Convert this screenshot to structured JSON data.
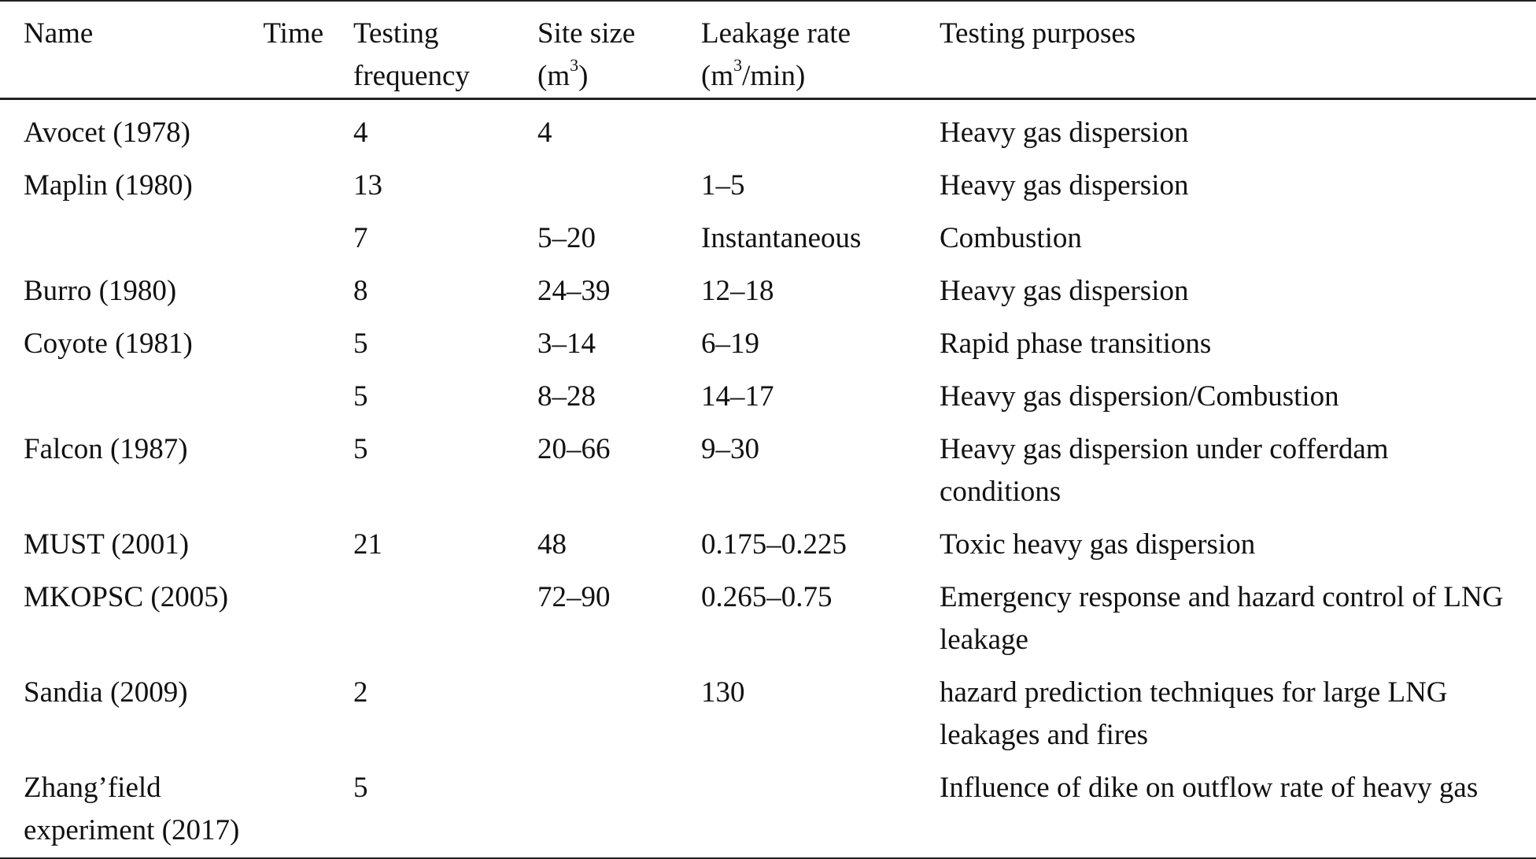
{
  "table": {
    "headers": {
      "name": "Name",
      "time": "Time",
      "frequency_1": "Testing",
      "frequency_2": "frequency",
      "site_1": "Site size",
      "site_2": "(m",
      "site_sup": "3",
      "site_3": ")",
      "rate_1": "Leakage rate",
      "rate_2": "(m",
      "rate_sup": "3",
      "rate_3": "/min)",
      "purposes": "Testing purposes"
    },
    "rows": [
      {
        "name": "Avocet (1978)",
        "frequency": "4",
        "site": "4",
        "rate": "",
        "purpose": "Heavy gas dispersion"
      },
      {
        "name": "Maplin (1980)",
        "frequency": "13",
        "site": "",
        "rate": "1–5",
        "purpose": "Heavy gas dispersion"
      },
      {
        "name": "",
        "frequency": "7",
        "site": "5–20",
        "rate": "Instantaneous",
        "purpose": "Combustion"
      },
      {
        "name": "Burro (1980)",
        "frequency": "8",
        "site": "24–39",
        "rate": "12–18",
        "purpose": "Heavy gas dispersion"
      },
      {
        "name": "Coyote (1981)",
        "frequency": "5",
        "site": "3–14",
        "rate": "6–19",
        "purpose": "Rapid phase transitions"
      },
      {
        "name": "",
        "frequency": "5",
        "site": "8–28",
        "rate": "14–17",
        "purpose": "Heavy gas dispersion/Combustion"
      },
      {
        "name": "Falcon (1987)",
        "frequency": "5",
        "site": "20–66",
        "rate": "9–30",
        "purpose": "Heavy gas dispersion under cofferdam conditions"
      },
      {
        "name": "MUST (2001)",
        "frequency": "21",
        "site": "48",
        "rate": "0.175–0.225",
        "purpose": "Toxic heavy gas dispersion"
      },
      {
        "name": "MKOPSC (2005)",
        "frequency": "",
        "site": "72–90",
        "rate": "0.265–0.75",
        "purpose": "Emergency response and hazard control of LNG leakage"
      },
      {
        "name": "Sandia (2009)",
        "frequency": "2",
        "site": "",
        "rate": "130",
        "purpose": "hazard prediction techniques for large LNG leakages and fires"
      },
      {
        "name": "Zhang’field experiment (2017)",
        "frequency": "5",
        "site": "",
        "rate": "",
        "purpose": "Influence of dike on outflow rate of heavy gas"
      }
    ]
  }
}
